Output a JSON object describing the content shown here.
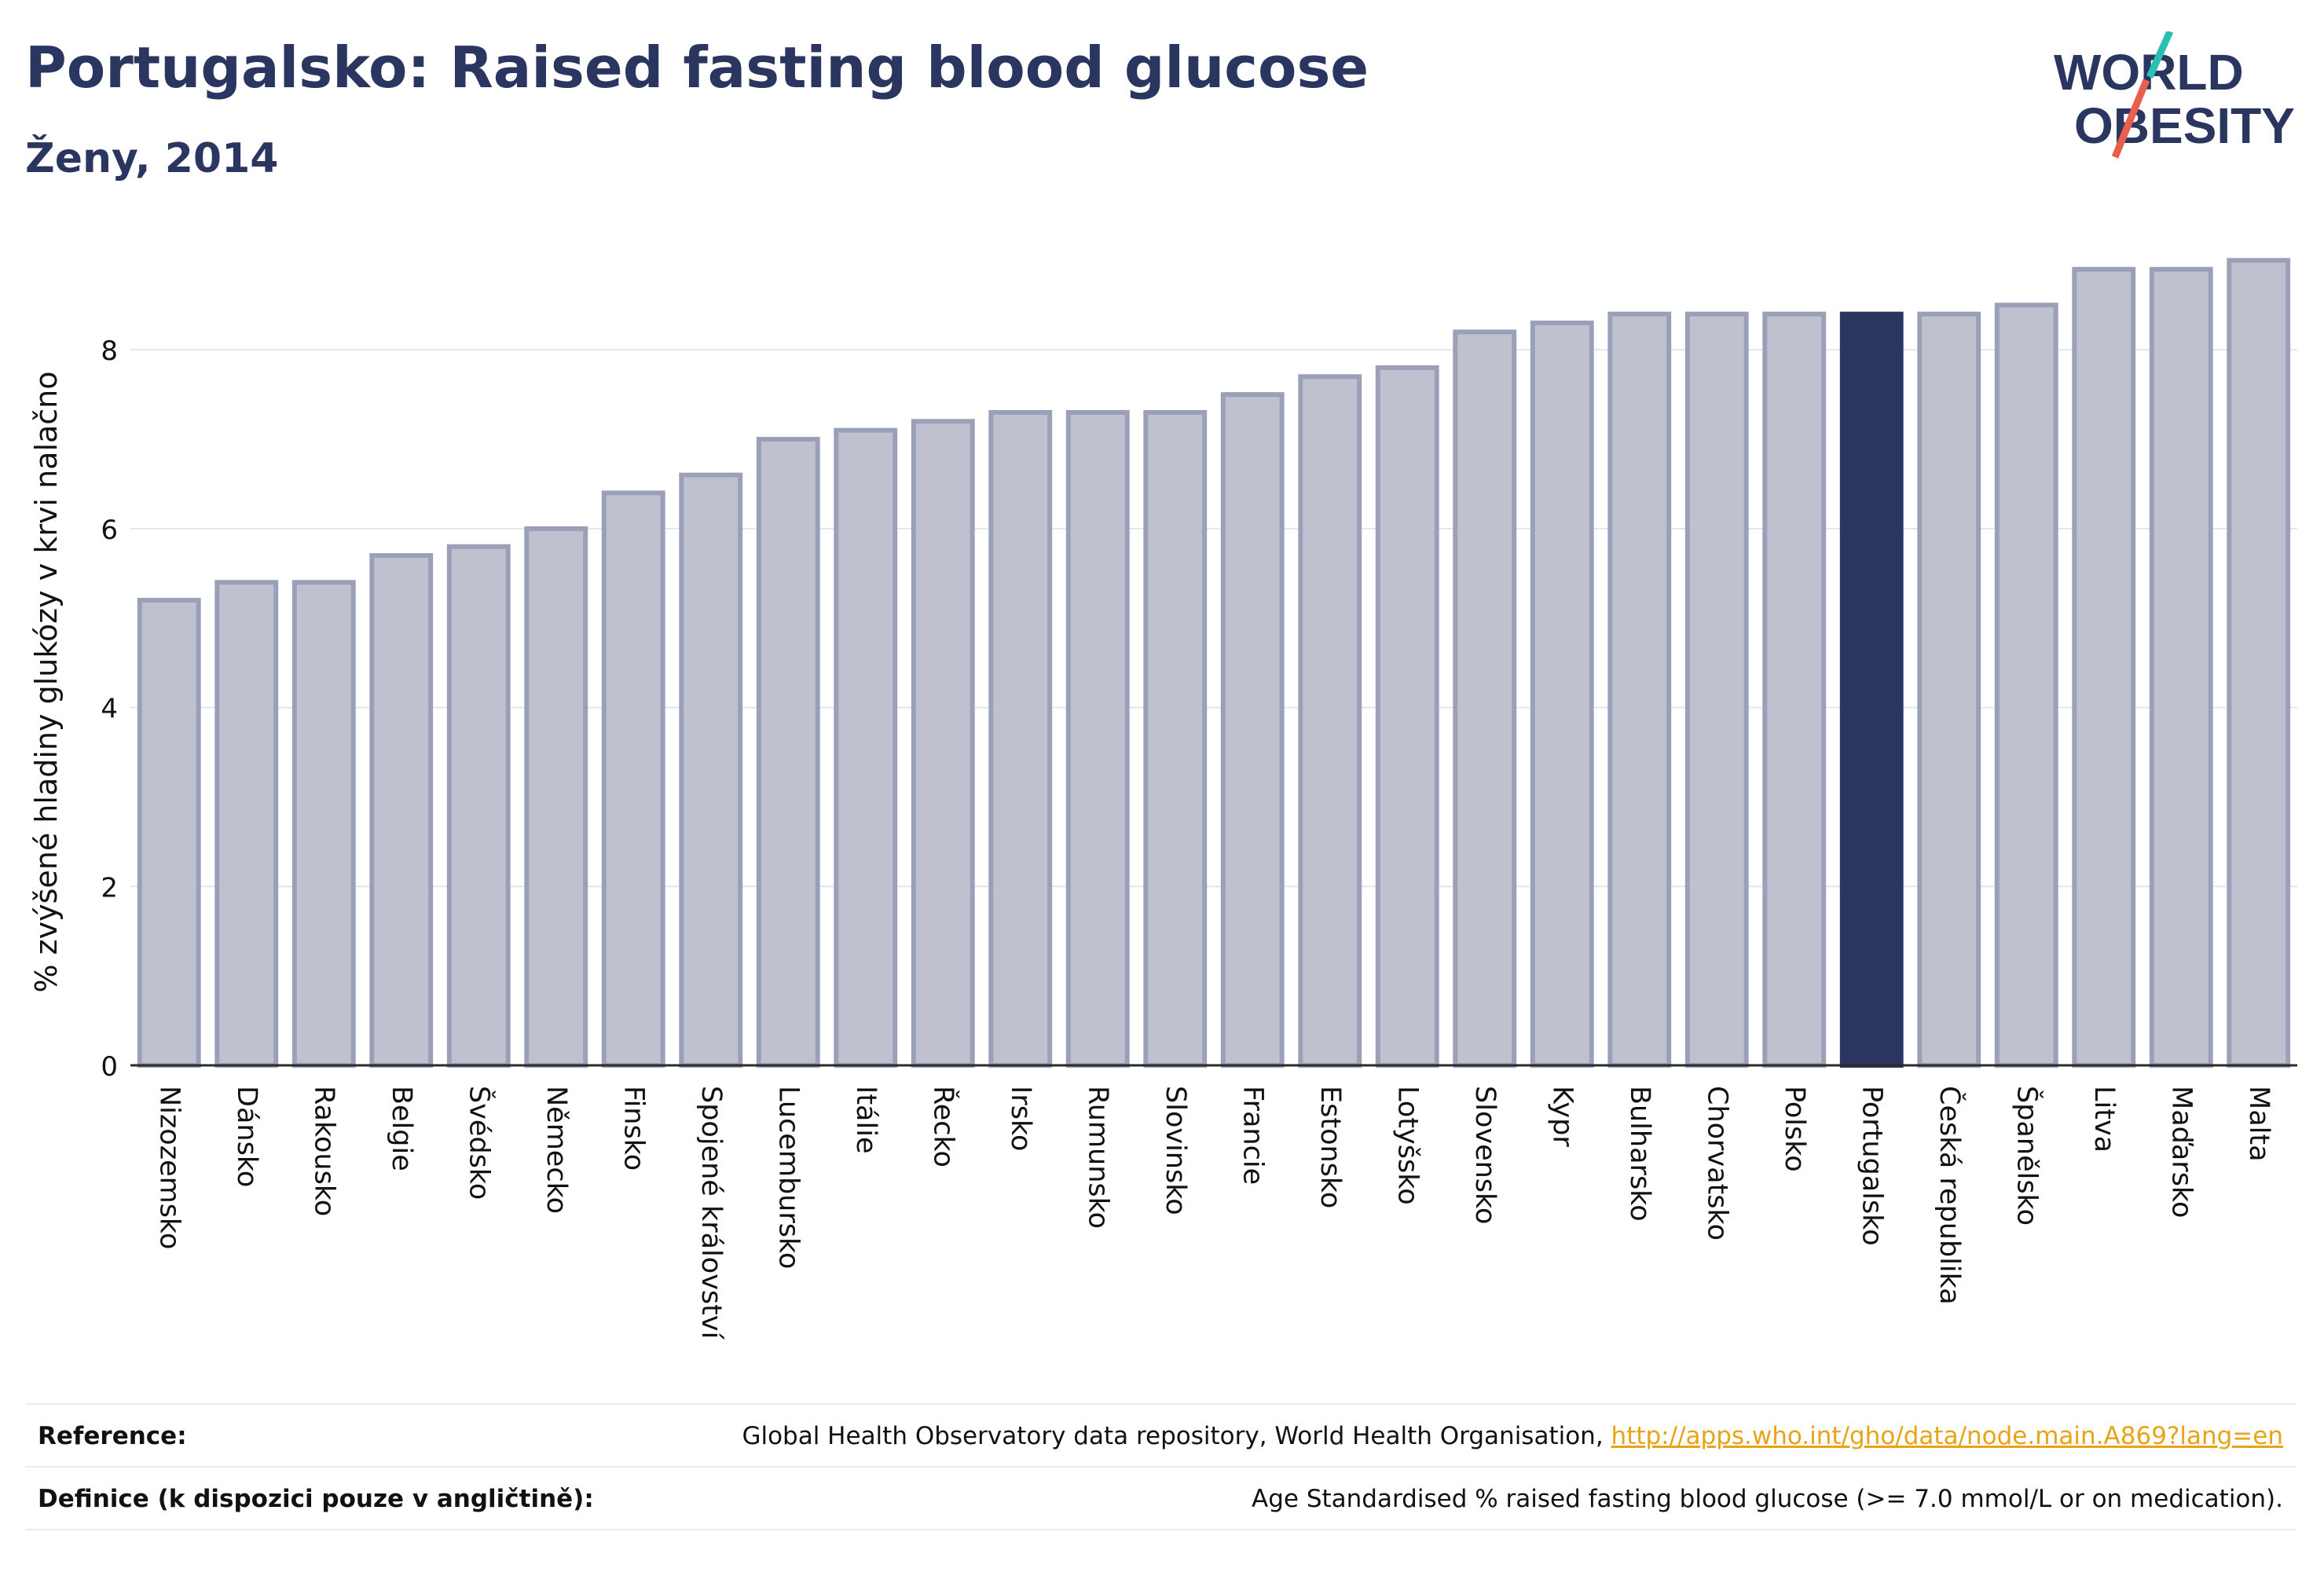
{
  "header": {
    "title": "Portugalsko: Raised fasting blood glucose",
    "subtitle": "Ženy, 2014"
  },
  "logo": {
    "line1": "WORLD",
    "line2": "OBESITY",
    "colors": {
      "text": "#2a3660",
      "accent_teal": "#2bbfb3",
      "accent_red": "#e8604c"
    }
  },
  "chart_data": {
    "type": "bar",
    "ylabel": "% zvýšené hladiny glukózy v krvi nalačno",
    "xlabel": "",
    "ylim": [
      0,
      9.1
    ],
    "yticks": [
      0,
      2,
      4,
      6,
      8
    ],
    "grid": true,
    "highlight": "Portugalsko",
    "colors": {
      "bar": "#bfc2ce",
      "bar_border": "#9aa0b8",
      "highlight": "#2a3660",
      "grid": "#e3e6ef"
    },
    "categories": [
      "Nizozemsko",
      "Dánsko",
      "Rakousko",
      "Belgie",
      "Švédsko",
      "Německo",
      "Finsko",
      "Spojené království",
      "Lucembursko",
      "Itálie",
      "Řecko",
      "Irsko",
      "Rumunsko",
      "Slovinsko",
      "Francie",
      "Estonsko",
      "Lotyšsko",
      "Slovensko",
      "Kypr",
      "Bulharsko",
      "Chorvatsko",
      "Polsko",
      "Portugalsko",
      "Česká republika",
      "Španělsko",
      "Litva",
      "Maďarsko",
      "Malta"
    ],
    "values": [
      5.2,
      5.4,
      5.4,
      5.7,
      5.8,
      6.0,
      6.4,
      6.6,
      7.0,
      7.1,
      7.2,
      7.3,
      7.3,
      7.3,
      7.5,
      7.7,
      7.8,
      8.2,
      8.3,
      8.4,
      8.4,
      8.4,
      8.4,
      8.4,
      8.5,
      8.9,
      8.9,
      9.0
    ]
  },
  "footer": {
    "reference_label": "Reference:",
    "reference_text": "Global Health Observatory data repository, World Health Organisation, ",
    "reference_link": "http://apps.who.int/gho/data/node.main.A869?lang=en",
    "definition_label": "Definice (k dispozici pouze v angličtině):",
    "definition_text": "Age Standardised % raised fasting blood glucose (>= 7.0 mmol/L or on medication)."
  }
}
